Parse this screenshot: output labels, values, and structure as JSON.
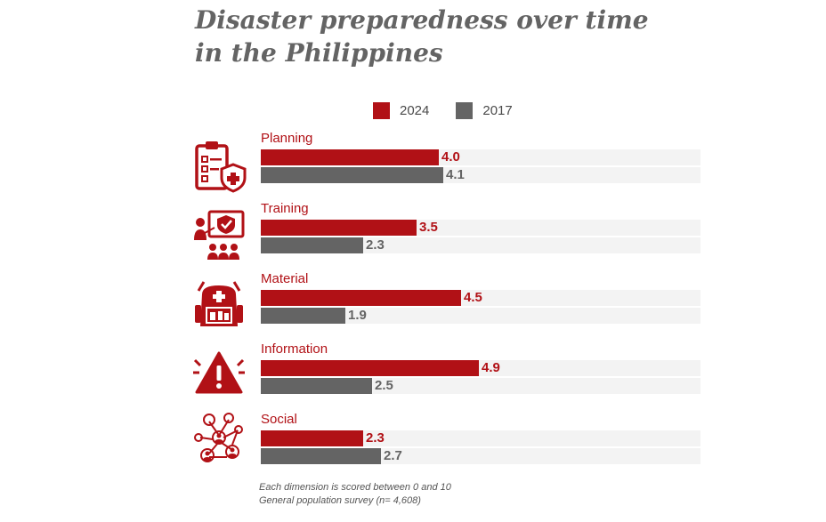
{
  "title_lines": [
    "Disaster preparedness over time",
    "in the Philippines"
  ],
  "legend": [
    {
      "label": "2024",
      "color": "#b11116"
    },
    {
      "label": "2017",
      "color": "#646464"
    }
  ],
  "footnote": [
    "Each dimension is scored between 0 and 10",
    "General population survey (n= 4,608)"
  ],
  "chart_data": {
    "type": "bar",
    "orientation": "horizontal",
    "title": "Disaster preparedness over time in the Philippines",
    "categories": [
      "Planning",
      "Training",
      "Material",
      "Information",
      "Social"
    ],
    "icons": [
      "checklist-shield-icon",
      "training-people-icon",
      "first-aid-backpack-icon",
      "warning-triangle-icon",
      "social-network-icon"
    ],
    "series": [
      {
        "name": "2024",
        "color": "#b11116",
        "values": [
          4.0,
          3.5,
          4.5,
          4.9,
          2.3
        ],
        "labels": [
          "4.0",
          "3.5",
          "4.5",
          "4.9",
          "2.3"
        ]
      },
      {
        "name": "2017",
        "color": "#646464",
        "values": [
          4.1,
          2.3,
          1.9,
          2.5,
          2.7
        ],
        "labels": [
          "4.1",
          "2.3",
          "1.9",
          "2.5",
          "2.7"
        ]
      }
    ],
    "xlim": [
      0,
      10
    ],
    "legend_position": "top"
  }
}
